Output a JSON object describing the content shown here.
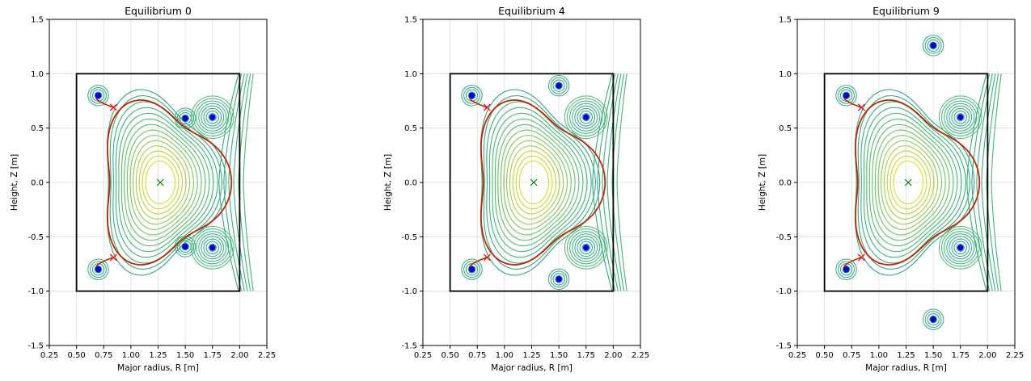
{
  "chart_data": [
    {
      "type": "contour",
      "title": "Equilibrium 0",
      "xlabel": "Major radius, R [m]",
      "ylabel": "Height, Z [m]",
      "xlim": [
        0.25,
        2.25
      ],
      "ylim": [
        -1.5,
        1.5
      ],
      "xticks": [
        "0.25",
        "0.50",
        "0.75",
        "1.00",
        "1.25",
        "1.50",
        "1.75",
        "2.00",
        "2.25"
      ],
      "yticks": [
        "1.5",
        "1.0",
        "0.5",
        "0.0",
        "-0.5",
        "-1.0",
        "-1.5"
      ],
      "grid": true,
      "wall": {
        "r_min": 0.5,
        "r_max": 2.0,
        "z_min": -1.0,
        "z_max": 1.0,
        "color": "#000000"
      },
      "magnetic_axis": {
        "r": 1.27,
        "z": 0.0,
        "marker": "x",
        "color": "#008000"
      },
      "x_points": [
        {
          "r": 0.84,
          "z": 0.69
        },
        {
          "r": 0.84,
          "z": -0.69
        }
      ],
      "separatrix_color": "#cc2200",
      "coils": [
        {
          "r": 0.7,
          "z": 0.8
        },
        {
          "r": 0.7,
          "z": -0.8
        },
        {
          "r": 1.5,
          "z": 0.59
        },
        {
          "r": 1.5,
          "z": -0.59
        },
        {
          "r": 1.75,
          "z": 0.6
        },
        {
          "r": 1.75,
          "z": -0.6
        }
      ],
      "coil_color": "#0000ee"
    },
    {
      "type": "contour",
      "title": "Equilibrium 4",
      "xlabel": "Major radius, R [m]",
      "ylabel": "Height, Z [m]",
      "xlim": [
        0.25,
        2.25
      ],
      "ylim": [
        -1.5,
        1.5
      ],
      "xticks": [
        "0.25",
        "0.50",
        "0.75",
        "1.00",
        "1.25",
        "1.50",
        "1.75",
        "2.00",
        "2.25"
      ],
      "yticks": [
        "1.5",
        "1.0",
        "0.5",
        "0.0",
        "-0.5",
        "-1.0",
        "-1.5"
      ],
      "grid": true,
      "wall": {
        "r_min": 0.5,
        "r_max": 2.0,
        "z_min": -1.0,
        "z_max": 1.0,
        "color": "#000000"
      },
      "magnetic_axis": {
        "r": 1.27,
        "z": 0.0,
        "marker": "x",
        "color": "#008000"
      },
      "x_points": [
        {
          "r": 0.84,
          "z": 0.69
        },
        {
          "r": 0.84,
          "z": -0.69
        }
      ],
      "separatrix_color": "#cc2200",
      "coils": [
        {
          "r": 0.7,
          "z": 0.8
        },
        {
          "r": 0.7,
          "z": -0.8
        },
        {
          "r": 1.5,
          "z": 0.89
        },
        {
          "r": 1.5,
          "z": -0.89
        },
        {
          "r": 1.75,
          "z": 0.6
        },
        {
          "r": 1.75,
          "z": -0.6
        }
      ],
      "coil_color": "#0000ee"
    },
    {
      "type": "contour",
      "title": "Equilibrium 9",
      "xlabel": "Major radius, R [m]",
      "ylabel": "Height, Z [m]",
      "xlim": [
        0.25,
        2.25
      ],
      "ylim": [
        -1.5,
        1.5
      ],
      "xticks": [
        "0.25",
        "0.50",
        "0.75",
        "1.00",
        "1.25",
        "1.50",
        "1.75",
        "2.00",
        "2.25"
      ],
      "yticks": [
        "1.5",
        "1.0",
        "0.5",
        "0.0",
        "-0.5",
        "-1.0",
        "-1.5"
      ],
      "grid": true,
      "wall": {
        "r_min": 0.5,
        "r_max": 2.0,
        "z_min": -1.0,
        "z_max": 1.0,
        "color": "#000000"
      },
      "magnetic_axis": {
        "r": 1.27,
        "z": 0.0,
        "marker": "x",
        "color": "#008000"
      },
      "x_points": [
        {
          "r": 0.84,
          "z": 0.69
        },
        {
          "r": 0.84,
          "z": -0.69
        }
      ],
      "separatrix_color": "#cc2200",
      "coils": [
        {
          "r": 0.7,
          "z": 0.8
        },
        {
          "r": 0.7,
          "z": -0.8
        },
        {
          "r": 1.5,
          "z": 1.26
        },
        {
          "r": 1.5,
          "z": -1.26
        },
        {
          "r": 1.75,
          "z": 0.6
        },
        {
          "r": 1.75,
          "z": -0.6
        }
      ],
      "coil_color": "#0000ee"
    }
  ]
}
